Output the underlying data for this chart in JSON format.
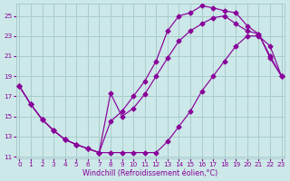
{
  "xlabel": "Windchill (Refroidissement éolien,°C)",
  "bg_color": "#cce8e8",
  "grid_color": "#aacccc",
  "line_color": "#880099",
  "xlim": [
    -0.3,
    23.3
  ],
  "ylim": [
    10.8,
    26.2
  ],
  "xticks": [
    0,
    1,
    2,
    3,
    4,
    5,
    6,
    7,
    8,
    9,
    10,
    11,
    12,
    13,
    14,
    15,
    16,
    17,
    18,
    19,
    20,
    21,
    22,
    23
  ],
  "yticks": [
    11,
    13,
    15,
    17,
    19,
    21,
    23,
    25
  ],
  "line1_x": [
    0,
    1,
    2,
    3,
    4,
    5,
    6,
    7,
    8,
    9,
    10,
    11,
    12,
    13,
    14,
    15,
    16,
    17,
    18,
    19,
    20,
    21,
    22,
    23
  ],
  "line1_y": [
    18.0,
    16.2,
    14.7,
    13.6,
    12.7,
    12.2,
    11.8,
    11.4,
    11.4,
    11.4,
    11.4,
    11.4,
    11.4,
    12.5,
    14.0,
    15.5,
    17.5,
    19.0,
    20.5,
    22.0,
    23.0,
    23.0,
    22.0,
    19.0
  ],
  "line2_x": [
    0,
    1,
    2,
    3,
    4,
    5,
    6,
    7,
    8,
    9,
    10,
    11,
    12,
    13,
    14,
    15,
    16,
    17,
    18,
    19,
    20,
    21,
    22,
    23
  ],
  "line2_y": [
    18.0,
    16.2,
    14.7,
    13.6,
    12.7,
    12.2,
    11.8,
    11.4,
    17.3,
    15.0,
    15.8,
    17.2,
    19.0,
    20.8,
    22.5,
    23.5,
    24.2,
    24.8,
    25.0,
    24.2,
    23.5,
    23.2,
    21.0,
    19.0
  ],
  "line3_x": [
    0,
    1,
    2,
    3,
    4,
    5,
    6,
    7,
    8,
    9,
    10,
    11,
    12,
    13,
    14,
    15,
    16,
    17,
    18,
    19,
    20,
    21,
    22,
    23
  ],
  "line3_y": [
    18.0,
    16.2,
    14.7,
    13.6,
    12.7,
    12.2,
    11.8,
    11.4,
    14.5,
    15.5,
    17.0,
    18.5,
    20.5,
    23.5,
    25.0,
    25.3,
    26.0,
    25.8,
    25.5,
    25.3,
    24.0,
    23.2,
    20.8,
    19.0
  ],
  "markersize": 2.5,
  "linewidth": 0.85,
  "tick_fontsize": 5.2,
  "xlabel_fontsize": 5.8
}
